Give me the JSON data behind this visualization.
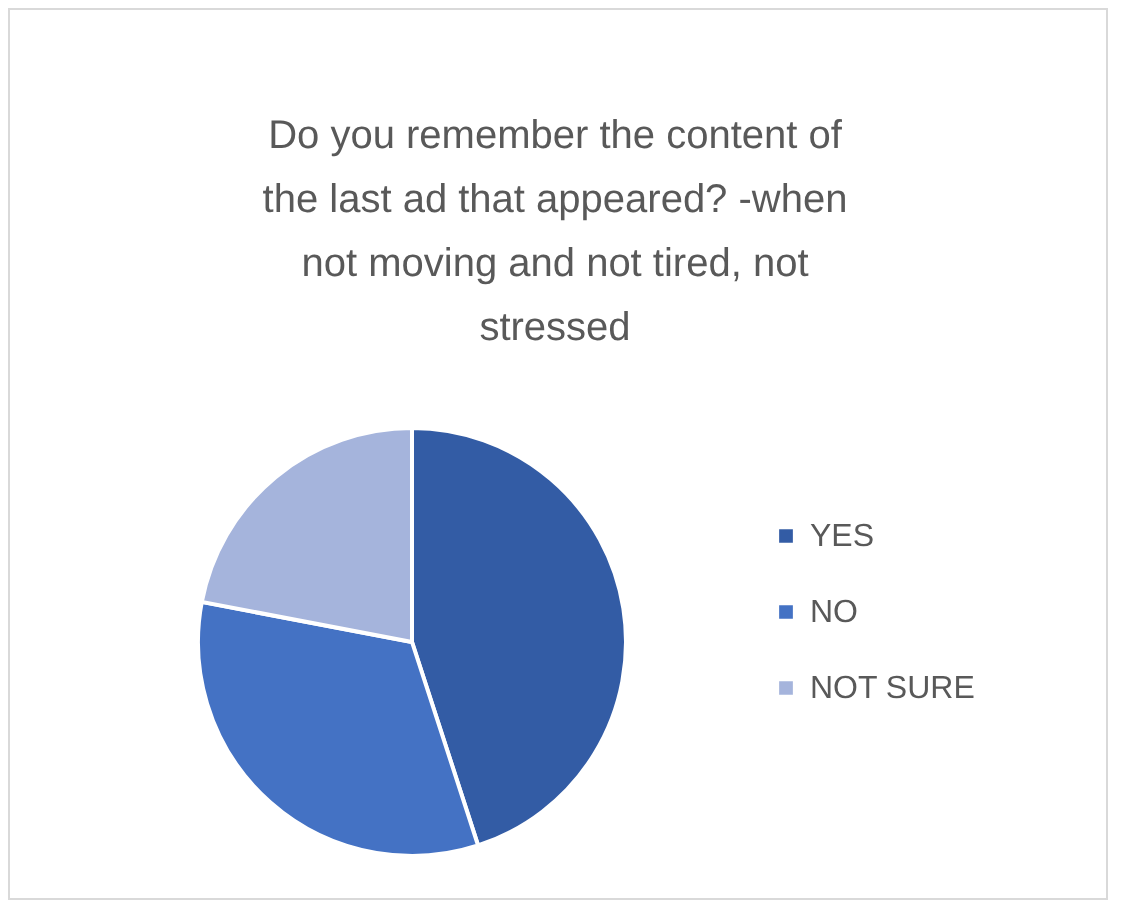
{
  "chart_data": {
    "type": "pie",
    "title": "Do you remember the content of the last ad that appeared? -when not moving and not tired, not stressed",
    "categories": [
      "YES",
      "NO",
      "NOT SURE"
    ],
    "values": [
      45,
      33,
      22
    ],
    "colors": [
      "#335ca5",
      "#4472c4",
      "#a5b4dc"
    ],
    "legend": "right"
  }
}
